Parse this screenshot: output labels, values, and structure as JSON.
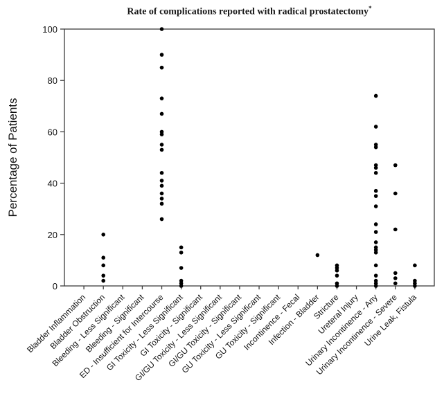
{
  "colors": {
    "background": "#ffffff",
    "axis": "#3c3c3c",
    "marker": "#000000",
    "text": "#111111"
  },
  "chart_data": {
    "type": "scatter",
    "title": "Rate of complications reported with radical prostatectomy",
    "title_footnote_marker": "*",
    "xlabel": "",
    "ylabel": "Percentage of Patients",
    "ylim": [
      0,
      100
    ],
    "yticks": [
      0,
      20,
      40,
      60,
      80,
      100
    ],
    "grid": false,
    "legend": false,
    "x_tick_rotation_deg": 45,
    "marker": {
      "shape": "circle",
      "color": "#000000",
      "radius_px": 2.8
    },
    "categories": [
      "Bladder Inflammation",
      "Bladder Obstruction",
      "Bleeding - Less Significant",
      "Bleeding - Significant",
      "ED - Insufficient for Intercourse",
      "GI Toxicity - Less Significant",
      "GI Toxicity - Significant",
      "GI/GU Toxicity - Less Significant",
      "GI/GU Toxicity - Significant",
      "GU Toxicity - Less Significant",
      "GU Toxicity - Significant",
      "Incontinence - Fecal",
      "Infection - Bladder",
      "Stricture",
      "Ureteral Injury",
      "Urinary Incontinence - Any",
      "Urinary Incontinence - Severe",
      "Urine Leak, Fistula"
    ],
    "series": [
      {
        "name": "Bladder Inflammation",
        "values": []
      },
      {
        "name": "Bladder Obstruction",
        "values": [
          20,
          11,
          8,
          4,
          2
        ]
      },
      {
        "name": "Bleeding - Less Significant",
        "values": []
      },
      {
        "name": "Bleeding - Significant",
        "values": []
      },
      {
        "name": "ED - Insufficient for Intercourse",
        "values": [
          100,
          90,
          85,
          73,
          67,
          60,
          59,
          55,
          53,
          44,
          41,
          39,
          36,
          34,
          32,
          26
        ]
      },
      {
        "name": "GI Toxicity - Less Significant",
        "values": [
          15,
          13,
          7,
          2,
          1,
          0
        ]
      },
      {
        "name": "GI Toxicity - Significant",
        "values": []
      },
      {
        "name": "GI/GU Toxicity - Less Significant",
        "values": []
      },
      {
        "name": "GI/GU Toxicity - Significant",
        "values": []
      },
      {
        "name": "GU Toxicity - Less Significant",
        "values": []
      },
      {
        "name": "GU Toxicity - Significant",
        "values": []
      },
      {
        "name": "Incontinence - Fecal",
        "values": []
      },
      {
        "name": "Infection - Bladder",
        "values": [
          12
        ]
      },
      {
        "name": "Stricture",
        "values": [
          8,
          7,
          6,
          4,
          1,
          0
        ]
      },
      {
        "name": "Ureteral Injury",
        "values": []
      },
      {
        "name": "Urinary Incontinence - Any",
        "values": [
          74,
          62,
          55,
          54,
          47,
          46,
          44,
          37,
          35,
          31,
          24,
          21,
          17,
          15,
          14,
          13,
          8,
          4,
          2,
          1,
          0
        ]
      },
      {
        "name": "Urinary Incontinence - Severe",
        "values": [
          47,
          36,
          22,
          5,
          3,
          1
        ]
      },
      {
        "name": "Urine Leak, Fistula",
        "values": [
          8,
          2,
          1,
          0
        ]
      }
    ]
  }
}
